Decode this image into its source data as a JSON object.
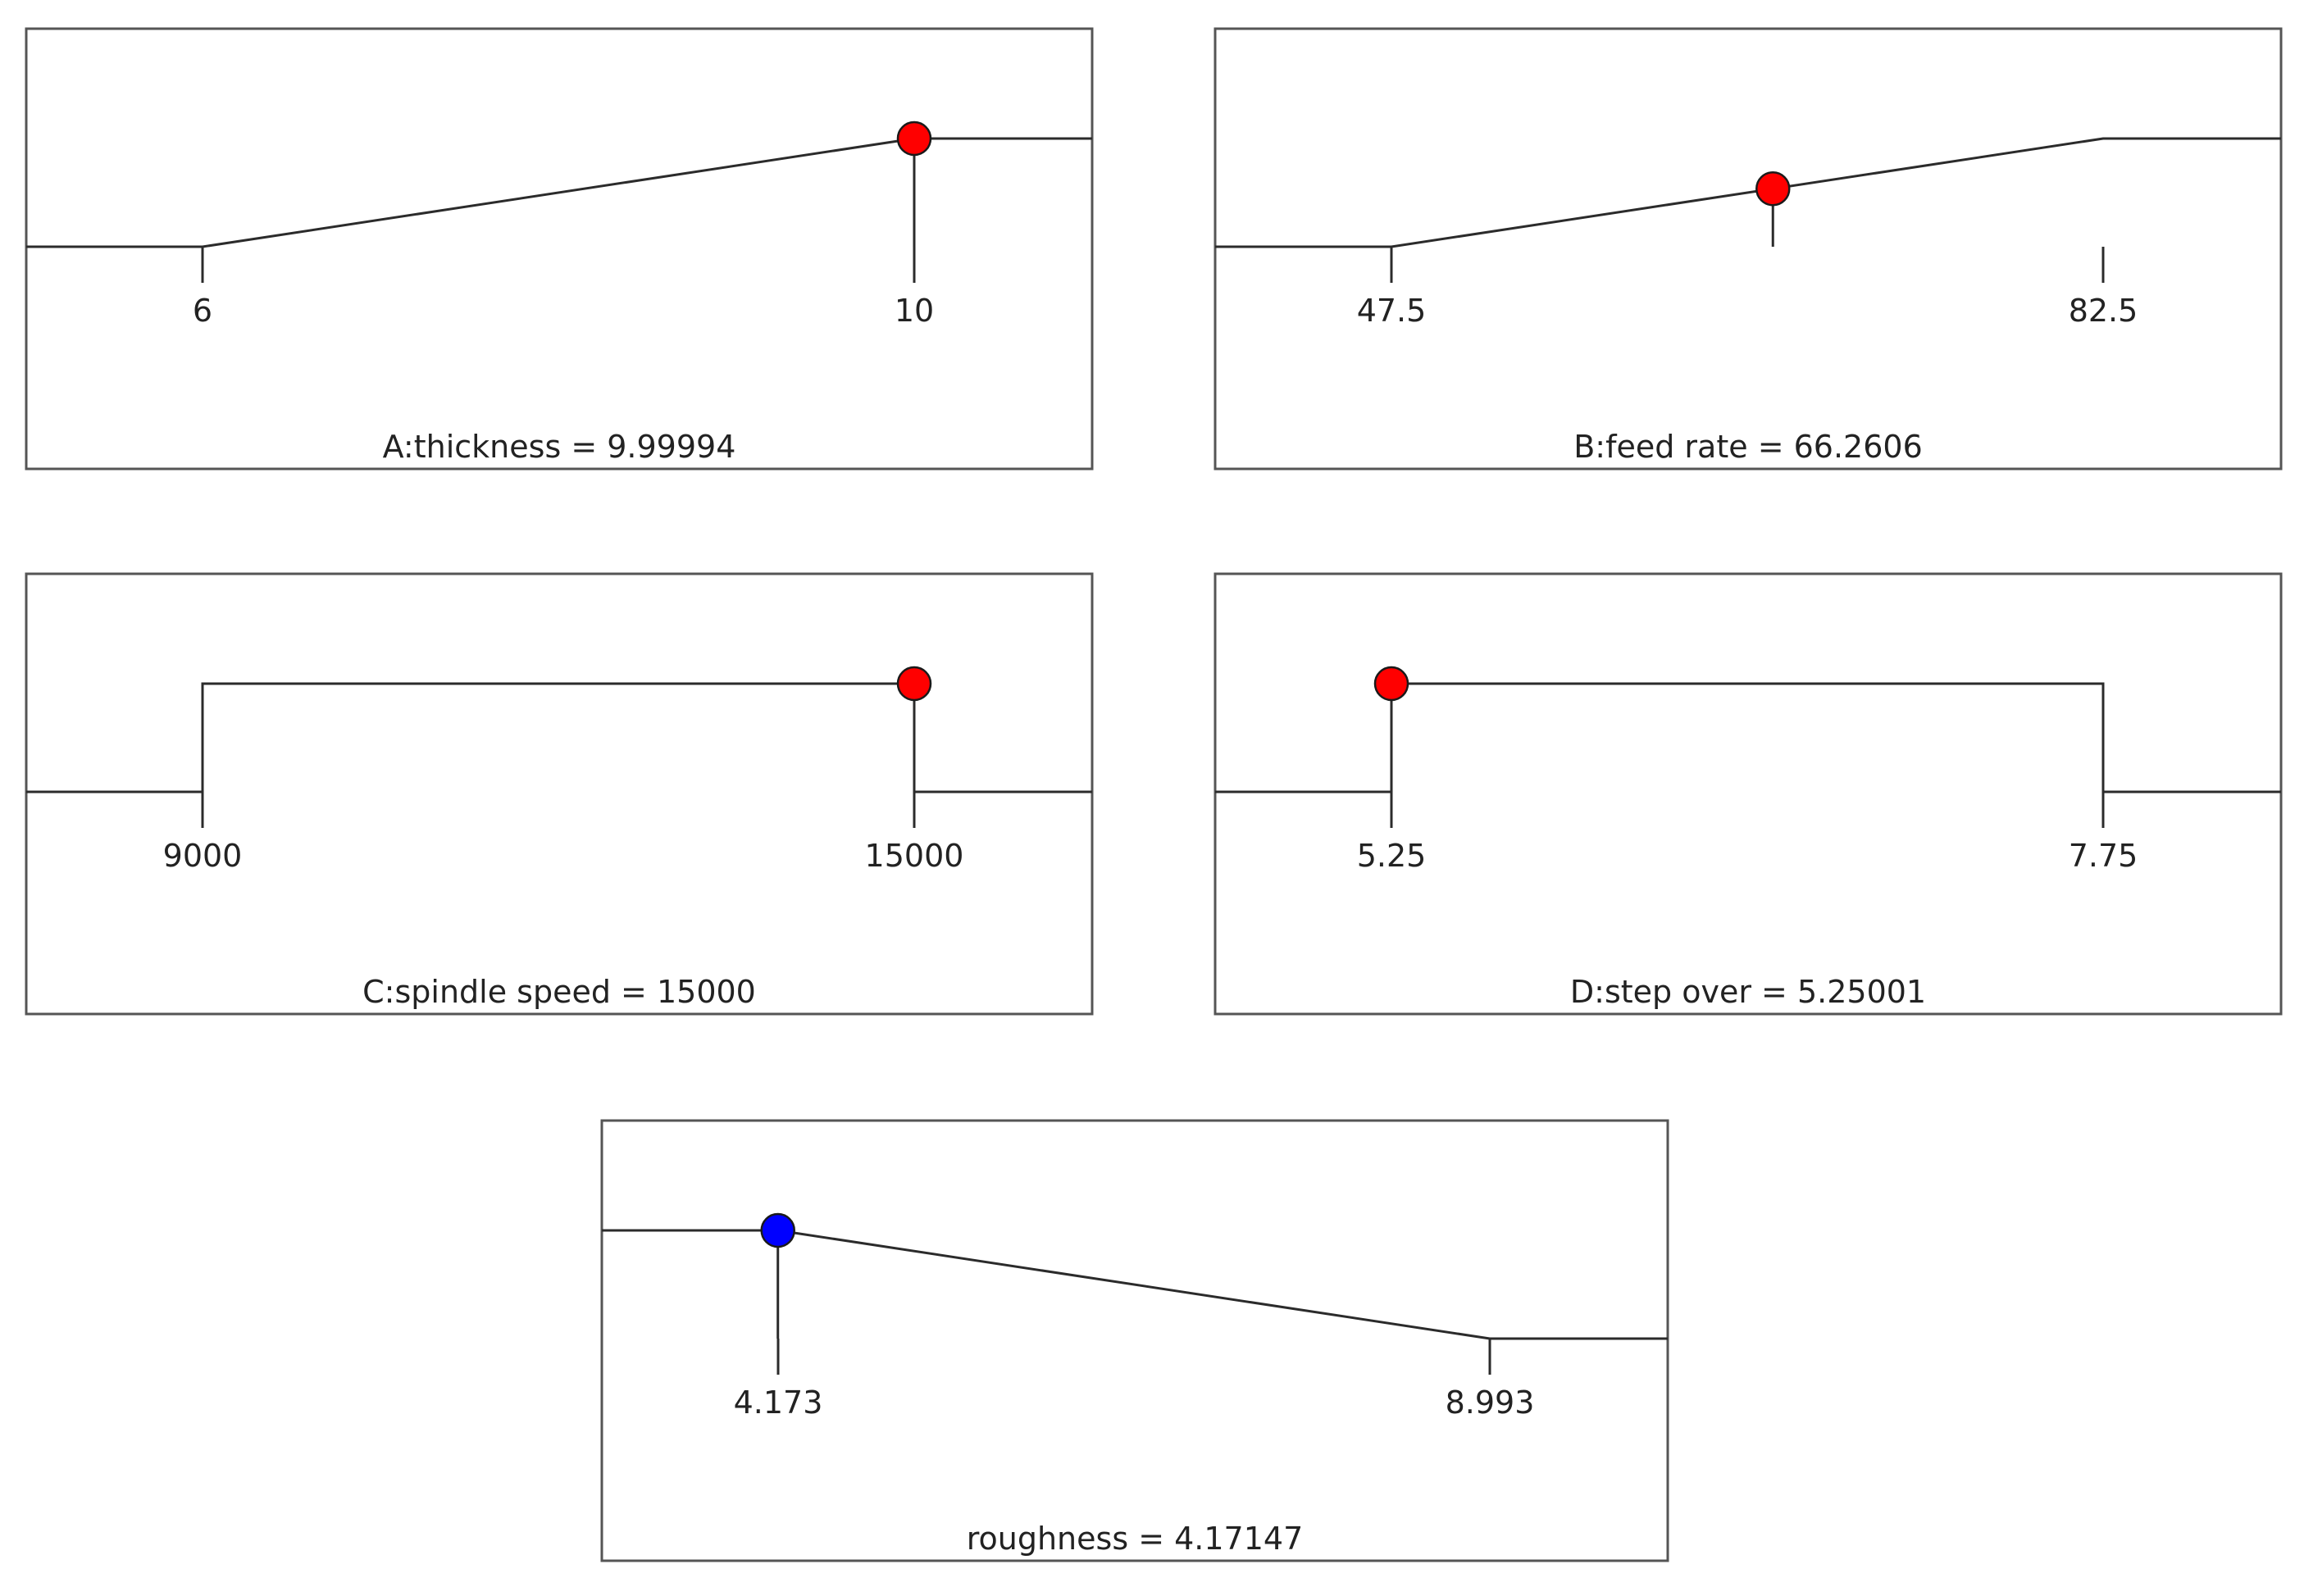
{
  "colors": {
    "factor_marker": "#ff0000",
    "response_marker": "#0000ff",
    "line": "#2b2b2b",
    "frame": "#555555",
    "background": "#ffffff"
  },
  "chart_data": [
    {
      "type": "line",
      "name": "thickness",
      "shape": "ramp-up",
      "low": 6,
      "high": 10,
      "tick_labels": [
        "6",
        "10"
      ],
      "current": 9.99994,
      "caption": "A:thickness = 9.99994",
      "marker_color": "red"
    },
    {
      "type": "line",
      "name": "feed rate",
      "shape": "ramp-up",
      "low": 47.5,
      "high": 82.5,
      "tick_labels": [
        "47.5",
        "82.5"
      ],
      "current": 66.2606,
      "caption": "B:feed rate = 66.2606",
      "marker_color": "red"
    },
    {
      "type": "line",
      "name": "spindle speed",
      "shape": "in-range",
      "low": 9000,
      "high": 15000,
      "tick_labels": [
        "9000",
        "15000"
      ],
      "current": 15000,
      "caption": "C:spindle speed = 15000",
      "marker_color": "red"
    },
    {
      "type": "line",
      "name": "step over",
      "shape": "in-range",
      "low": 5.25,
      "high": 7.75,
      "tick_labels": [
        "5.25",
        "7.75"
      ],
      "current": 5.25001,
      "caption": "D:step over = 5.25001",
      "marker_color": "red"
    },
    {
      "type": "line",
      "name": "roughness",
      "shape": "ramp-down",
      "low": 4.173,
      "high": 8.993,
      "tick_labels": [
        "4.173",
        "8.993"
      ],
      "current": 4.17147,
      "caption": "roughness = 4.17147",
      "marker_color": "blue"
    }
  ]
}
